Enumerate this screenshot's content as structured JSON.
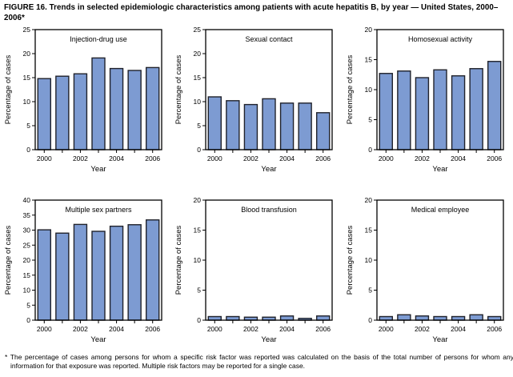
{
  "figure": {
    "title": "FIGURE 16. Trends in selected epidemiologic characteristics among patients with acute hepatitis B, by year — United States, 2000–2006*",
    "footnote": "* The percentage of cases among persons for whom a specific risk factor was reported was calculated on the basis of the total number of persons for whom any information for that exposure was reported. Multiple risk factors may be reported for a single case."
  },
  "colors": {
    "bar_fill": "#7D9BD2",
    "bar_stroke": "#20222B",
    "axis": "#000000",
    "text": "#000000",
    "background": "#FFFFFF"
  },
  "chart_data": [
    {
      "type": "bar",
      "title": "Injection-drug use",
      "xlabel": "Year",
      "ylabel": "Percentage of cases",
      "categories": [
        "2000",
        "2001",
        "2002",
        "2003",
        "2004",
        "2005",
        "2006"
      ],
      "xtick_labels": [
        "2000",
        "",
        "2002",
        "",
        "2004",
        "",
        "2006"
      ],
      "values": [
        14.8,
        15.3,
        15.8,
        19.1,
        16.9,
        16.5,
        17.1
      ],
      "ylim": [
        0,
        25
      ],
      "ytick_step": 5,
      "grid": false,
      "legend": false
    },
    {
      "type": "bar",
      "title": "Sexual contact",
      "xlabel": "Year",
      "ylabel": "Percentage of cases",
      "categories": [
        "2000",
        "2001",
        "2002",
        "2003",
        "2004",
        "2005",
        "2006"
      ],
      "xtick_labels": [
        "2000",
        "",
        "2002",
        "",
        "2004",
        "",
        "2006"
      ],
      "values": [
        11.0,
        10.2,
        9.4,
        10.6,
        9.7,
        9.7,
        7.7
      ],
      "ylim": [
        0,
        25
      ],
      "ytick_step": 5,
      "grid": false,
      "legend": false
    },
    {
      "type": "bar",
      "title": "Homosexual activity",
      "xlabel": "Year",
      "ylabel": "Percentage of cases",
      "categories": [
        "2000",
        "2001",
        "2002",
        "2003",
        "2004",
        "2005",
        "2006"
      ],
      "xtick_labels": [
        "2000",
        "",
        "2002",
        "",
        "2004",
        "",
        "2006"
      ],
      "values": [
        12.7,
        13.1,
        12.0,
        13.3,
        12.3,
        13.5,
        14.7
      ],
      "ylim": [
        0,
        20
      ],
      "ytick_step": 5,
      "grid": false,
      "legend": false
    },
    {
      "type": "bar",
      "title": "Multiple sex partners",
      "xlabel": "Year",
      "ylabel": "Percentage of cases",
      "categories": [
        "2000",
        "2001",
        "2002",
        "2003",
        "2004",
        "2005",
        "2006"
      ],
      "xtick_labels": [
        "2000",
        "",
        "2002",
        "",
        "2004",
        "",
        "2006"
      ],
      "values": [
        30.1,
        29.0,
        31.9,
        29.6,
        31.3,
        31.8,
        33.4
      ],
      "ylim": [
        0,
        40
      ],
      "ytick_step": 5,
      "grid": false,
      "legend": false
    },
    {
      "type": "bar",
      "title": "Blood transfusion",
      "xlabel": "Year",
      "ylabel": "Percentage of cases",
      "categories": [
        "2000",
        "2001",
        "2002",
        "2003",
        "2004",
        "2005",
        "2006"
      ],
      "xtick_labels": [
        "2000",
        "",
        "2002",
        "",
        "2004",
        "",
        "2006"
      ],
      "values": [
        0.6,
        0.6,
        0.5,
        0.5,
        0.7,
        0.3,
        0.7
      ],
      "ylim": [
        0,
        20
      ],
      "ytick_step": 5,
      "grid": false,
      "legend": false
    },
    {
      "type": "bar",
      "title": "Medical employee",
      "xlabel": "Year",
      "ylabel": "Percentage of cases",
      "categories": [
        "2000",
        "2001",
        "2002",
        "2003",
        "2004",
        "2005",
        "2006"
      ],
      "xtick_labels": [
        "2000",
        "",
        "2002",
        "",
        "2004",
        "",
        "2006"
      ],
      "values": [
        0.6,
        0.9,
        0.7,
        0.6,
        0.6,
        0.9,
        0.6
      ],
      "ylim": [
        0,
        20
      ],
      "ytick_step": 5,
      "grid": false,
      "legend": false
    }
  ]
}
